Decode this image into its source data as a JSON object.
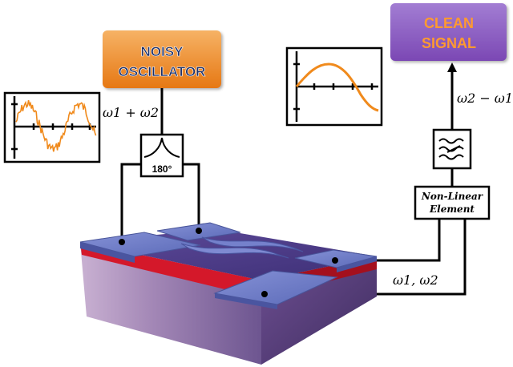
{
  "oscillator": {
    "line1": "NOISY",
    "line2": "OSCILLATOR"
  },
  "output": {
    "line1": "CLEAN",
    "line2": "SIGNAL"
  },
  "splitter": {
    "label": "180°"
  },
  "nonlinear": {
    "line1": "Non-Linear",
    "line2": "Element"
  },
  "labels": {
    "sum": "ω1 + ω2",
    "diff": "ω2 − ω1",
    "pair": "ω1, ω2"
  },
  "colors": {
    "oscillator_fill": "#f08a28",
    "oscillator_text": "#1a2f6a",
    "signal_fill": "#8c5cc0",
    "signal_text": "#ff9a30",
    "trace": "#f08a1c",
    "electrode": "#6e7dc9",
    "substrate": "#8d6ea8",
    "red_layer": "#d4182a"
  },
  "icons": {
    "filter": "low-pass-filter-icon",
    "arrow": "arrow-up-icon"
  }
}
